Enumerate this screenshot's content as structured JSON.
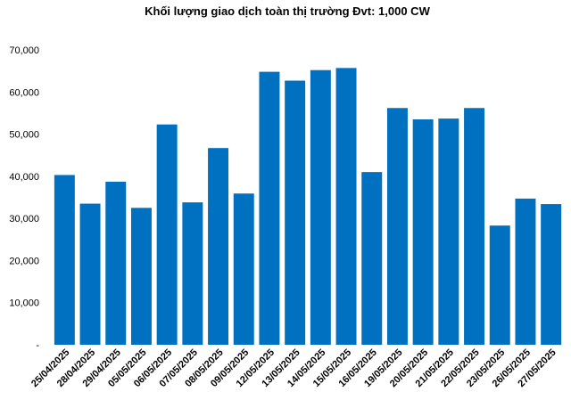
{
  "chart_data": {
    "type": "bar",
    "title": "Khối lượng giao dịch toàn thị trường Đvt: 1,000 CW",
    "xlabel": "",
    "ylabel": "",
    "categories": [
      "25/04/2025",
      "28/04/2025",
      "29/04/2025",
      "05/05/2025",
      "06/05/2025",
      "07/05/2025",
      "08/05/2025",
      "09/05/2025",
      "12/05/2025",
      "13/05/2025",
      "14/05/2025",
      "15/05/2025",
      "16/05/2025",
      "19/05/2025",
      "20/05/2025",
      "21/05/2025",
      "22/05/2025",
      "23/05/2025",
      "26/05/2025",
      "27/05/2025"
    ],
    "values": [
      40300,
      33500,
      38700,
      32500,
      52300,
      33800,
      46700,
      35900,
      64800,
      62700,
      65200,
      65700,
      41000,
      56200,
      53500,
      53700,
      56200,
      28300,
      34700,
      33400
    ],
    "ylim": [
      0,
      70000
    ],
    "yticks": [
      0,
      10000,
      20000,
      30000,
      40000,
      50000,
      60000,
      70000
    ],
    "ytick_labels": [
      "-",
      "10,000",
      "20,000",
      "30,000",
      "40,000",
      "50,000",
      "60,000",
      "70,000"
    ],
    "grid": false,
    "legend": "none",
    "bar_color": "#0070c0"
  }
}
